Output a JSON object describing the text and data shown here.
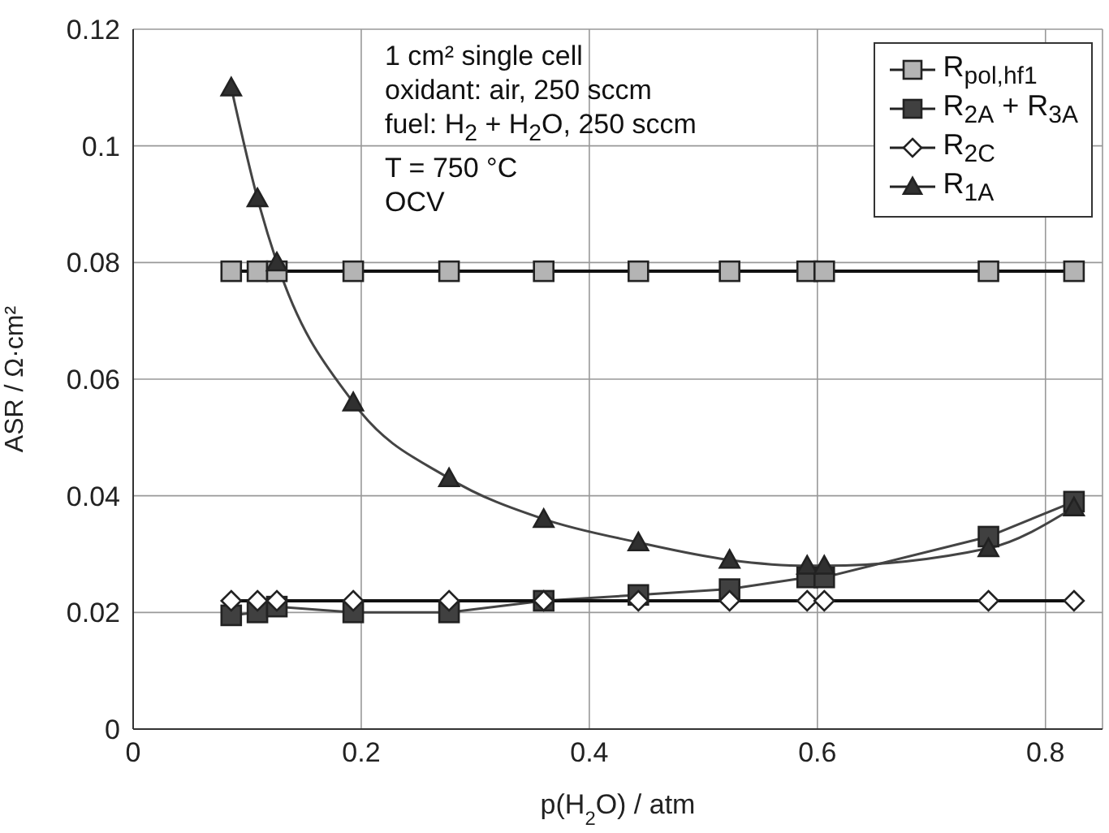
{
  "chart_data": {
    "type": "line",
    "xlabel": "p(H$_{2}$O) / atm",
    "ylabel": "ASR / Ω·cm²",
    "x": [
      0.086,
      0.109,
      0.126,
      0.193,
      0.277,
      0.36,
      0.443,
      0.523,
      0.591,
      0.606,
      0.75,
      0.825
    ],
    "series": [
      {
        "name": "R$_{pol,hf1}$",
        "color": "#b4b4b4",
        "marker": "square",
        "values": [
          0.0785,
          0.0785,
          0.0785,
          0.0785,
          0.0785,
          0.0785,
          0.0785,
          0.0785,
          0.0785,
          0.0785,
          0.0785,
          0.0785
        ]
      },
      {
        "name": "R$_{2A}$ + R$_{3A}$",
        "color": "#404040",
        "marker": "square",
        "values": [
          0.0195,
          0.02,
          0.021,
          0.02,
          0.02,
          0.022,
          0.023,
          0.024,
          0.026,
          0.026,
          0.033,
          0.039
        ]
      },
      {
        "name": "R$_{2C}$",
        "color": "#ffffff",
        "marker": "diamond",
        "values": [
          0.022,
          0.022,
          0.022,
          0.022,
          0.022,
          0.022,
          0.022,
          0.022,
          0.022,
          0.022,
          0.022,
          0.022
        ]
      },
      {
        "name": "R$_{1A}$",
        "color": "#303030",
        "marker": "triangle",
        "values": [
          0.11,
          0.091,
          0.08,
          0.056,
          0.043,
          0.036,
          0.032,
          0.029,
          0.028,
          0.028,
          0.031,
          0.038
        ]
      }
    ],
    "xlim": [
      0,
      0.85
    ],
    "xticks": [
      0,
      0.2,
      0.4,
      0.6,
      0.8
    ],
    "ylim": [
      0,
      0.12
    ],
    "yticks": [
      0,
      0.02,
      0.04,
      0.06,
      0.08,
      0.1,
      0.12
    ],
    "grid": true,
    "legend": "top right",
    "line_style": "solid",
    "annotations": [
      "1 cm² single cell",
      "oxidant: air, 250 sccm",
      "fuel: H$_{2}$ + H$_{2}$O, 250 sccm",
      "T = 750 °C",
      "OCV"
    ]
  }
}
